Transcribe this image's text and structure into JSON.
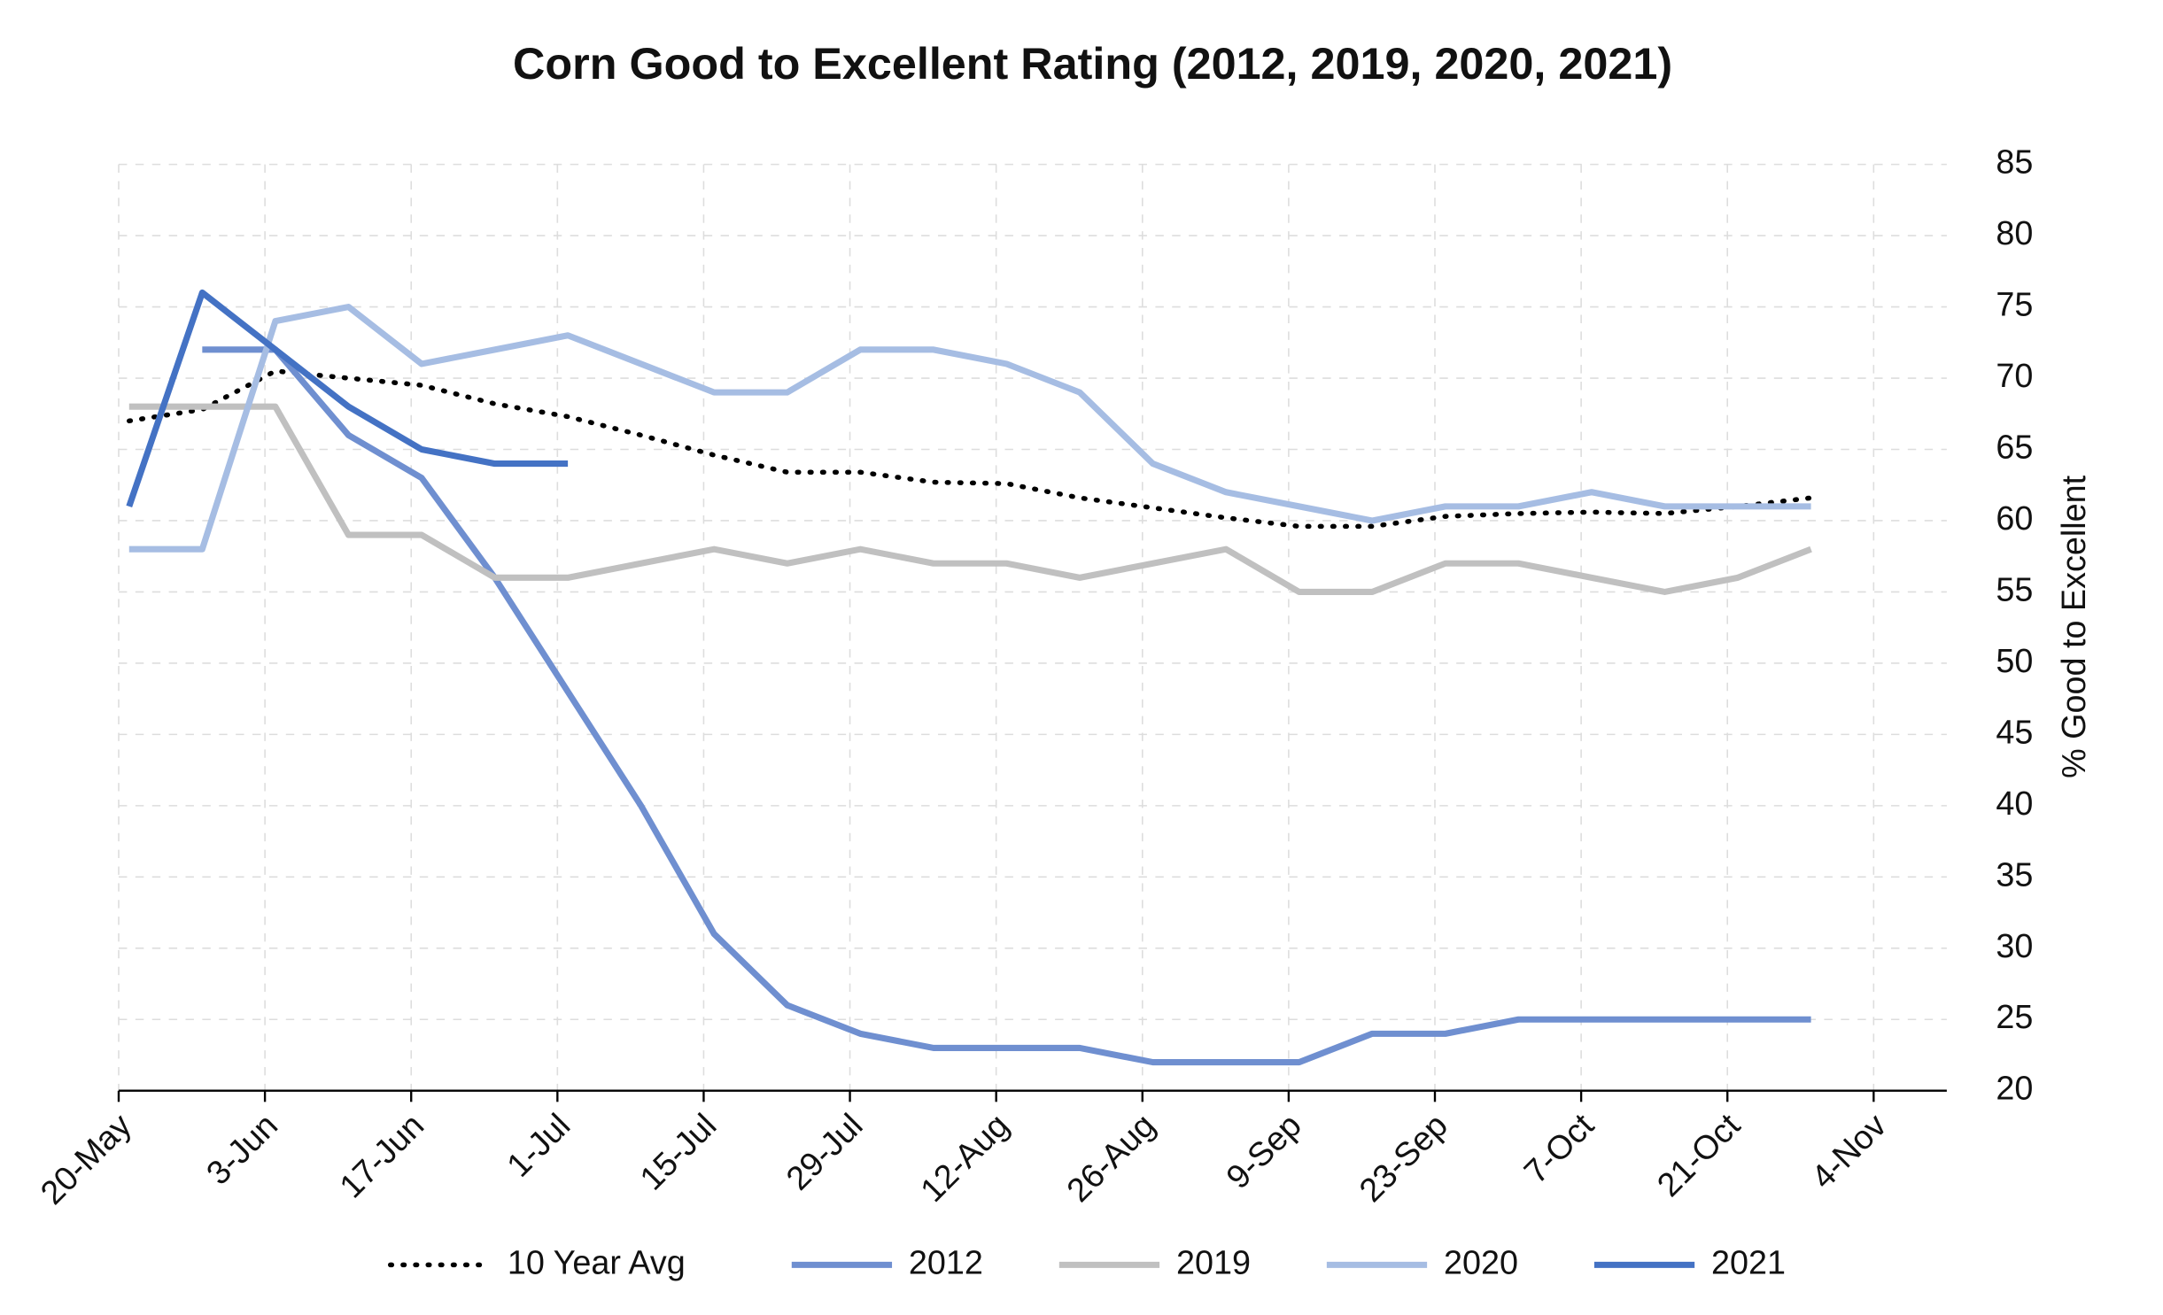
{
  "chart_data": {
    "type": "line",
    "title": "Corn Good to Excellent Rating (2012, 2019, 2020, 2021)",
    "y_label": "% Good to Excellent",
    "x": [
      1,
      8,
      15,
      22,
      29,
      36,
      43,
      50,
      57,
      64,
      71,
      78,
      85,
      92,
      99,
      106,
      113,
      120,
      127,
      134,
      141,
      148,
      155,
      162
    ],
    "xlim": [
      0,
      175
    ],
    "xticks": [
      {
        "value": 0,
        "label": "20-May"
      },
      {
        "value": 14,
        "label": "3-Jun"
      },
      {
        "value": 28,
        "label": "17-Jun"
      },
      {
        "value": 42,
        "label": "1-Jul"
      },
      {
        "value": 56,
        "label": "15-Jul"
      },
      {
        "value": 70,
        "label": "29-Jul"
      },
      {
        "value": 84,
        "label": "12-Aug"
      },
      {
        "value": 98,
        "label": "26-Aug"
      },
      {
        "value": 112,
        "label": "9-Sep"
      },
      {
        "value": 126,
        "label": "23-Sep"
      },
      {
        "value": 140,
        "label": "7-Oct"
      },
      {
        "value": 154,
        "label": "21-Oct"
      },
      {
        "value": 168,
        "label": "4-Nov"
      }
    ],
    "ylim": [
      20,
      85
    ],
    "yticks": [
      20,
      25,
      30,
      35,
      40,
      45,
      50,
      55,
      60,
      65,
      70,
      75,
      80,
      85
    ],
    "y_axis_side": "right",
    "grid": true,
    "legend": "bottom",
    "series": [
      {
        "name": "10 Year Avg",
        "color": "#000000",
        "style": "dotted",
        "values": [
          67,
          67.8,
          70.5,
          70,
          69.5,
          68.2,
          67.3,
          66,
          64.6,
          63.4,
          63.4,
          62.7,
          62.6,
          61.6,
          60.9,
          60.2,
          59.6,
          59.6,
          60.3,
          60.5,
          60.6,
          60.5,
          61,
          61.6
        ]
      },
      {
        "name": "2012",
        "color": "#6f8fd0",
        "style": "solid",
        "values": [
          null,
          72,
          72,
          66,
          63,
          56,
          48,
          40,
          31,
          26,
          24,
          23,
          23,
          23,
          22,
          22,
          22,
          24,
          24,
          25,
          25,
          25,
          25,
          25
        ]
      },
      {
        "name": "2019",
        "color": "#c0c0c0",
        "style": "solid",
        "values": [
          68,
          68,
          68,
          59,
          59,
          56,
          56,
          57,
          58,
          57,
          58,
          57,
          57,
          56,
          57,
          58,
          55,
          55,
          57,
          57,
          56,
          55,
          56,
          58
        ]
      },
      {
        "name": "2020",
        "color": "#a6bde3",
        "style": "solid",
        "values": [
          58,
          58,
          74,
          75,
          71,
          72,
          73,
          71,
          69,
          69,
          72,
          72,
          71,
          69,
          64,
          62,
          61,
          60,
          61,
          61,
          62,
          61,
          61,
          61
        ]
      },
      {
        "name": "2021",
        "color": "#4472c4",
        "style": "solid",
        "values": [
          61,
          76,
          72,
          68,
          65,
          64,
          64,
          null,
          null,
          null,
          null,
          null,
          null,
          null,
          null,
          null,
          null,
          null,
          null,
          null,
          null,
          null,
          null,
          null
        ]
      }
    ]
  }
}
